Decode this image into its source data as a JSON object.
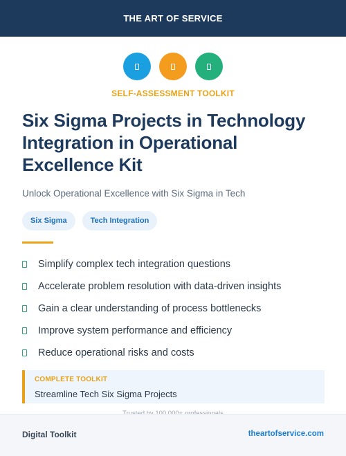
{
  "header": {
    "brand": "THE ART OF SERVICE"
  },
  "icons": [
    {
      "name": "blue-square-icon",
      "color": "#1aa0e0"
    },
    {
      "name": "orange-square-icon",
      "color": "#f39c1e"
    },
    {
      "name": "green-square-icon",
      "color": "#23b07d"
    }
  ],
  "hero": {
    "eyebrow": "SELF-ASSESSMENT TOOLKIT",
    "title": "Six Sigma Projects in Technology Integration in Operational Excellence Kit",
    "subtitle": "Unlock Operational Excellence with Six Sigma in Tech",
    "tags": [
      "Six Sigma",
      "Tech Integration"
    ]
  },
  "benefits": [
    "Simplify complex tech integration questions",
    "Accelerate problem resolution with data-driven insights",
    "Gain a clear understanding of process bottlenecks",
    "Improve system performance and efficiency",
    "Reduce operational risks and costs"
  ],
  "toolkit": {
    "label": "COMPLETE TOOLKIT",
    "description": "Streamline Tech Six Sigma Projects"
  },
  "trusted": "Trusted by 100,000+ professionals",
  "footer": {
    "left": "Digital Toolkit",
    "right": "theartofservice.com"
  },
  "colors": {
    "navy": "#1d3a5c",
    "accent": "#e8a21a",
    "link": "#1d7fd1",
    "check": "#2aa775"
  }
}
